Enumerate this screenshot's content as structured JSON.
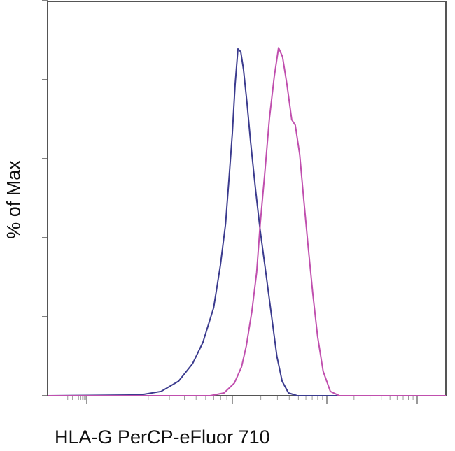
{
  "chart_data": {
    "type": "line",
    "title": "",
    "xlabel": "HLA-G PerCP-eFluor 710",
    "ylabel": "% of Max",
    "xlim": [
      0,
      100
    ],
    "ylim": [
      0,
      100
    ],
    "x_scale": "log",
    "grid": false,
    "legend": "none",
    "series": [
      {
        "color": "#3b3b8e",
        "x": [
          0,
          23.2,
          28.5,
          32.9,
          36.4,
          39.0,
          41.7,
          43.4,
          44.7,
          45.5,
          46.4,
          47.1,
          47.8,
          48.5,
          49.2,
          50.1,
          51.0,
          52.2,
          53.4,
          54.8,
          56.2,
          57.6,
          58.9,
          60.5,
          62.7,
          100
        ],
        "y": [
          0,
          0.2,
          1.1,
          3.7,
          8.1,
          13.5,
          22.3,
          33,
          43.5,
          54.2,
          66.5,
          78.9,
          87.8,
          87.1,
          82.6,
          73.8,
          64,
          52.4,
          41.8,
          31.2,
          20.5,
          9.9,
          3.7,
          0.7,
          0,
          0
        ]
      },
      {
        "color": "#c04fae",
        "x": [
          0,
          40.8,
          44.3,
          46.9,
          48.7,
          49.9,
          51.3,
          52.5,
          53.4,
          54.5,
          55.7,
          56.9,
          58.0,
          59.0,
          60.1,
          61.3,
          62.2,
          63.3,
          64.1,
          65.4,
          66.6,
          67.8,
          69.2,
          71.0,
          73.3,
          100
        ],
        "y": [
          0,
          0,
          0.7,
          3.2,
          7.3,
          12.6,
          21.4,
          31.2,
          43.5,
          55.9,
          70.1,
          80.7,
          88.1,
          85.8,
          78.8,
          69.9,
          68.5,
          61.1,
          52.2,
          38.1,
          25.7,
          15.0,
          6.2,
          1.1,
          0,
          0
        ]
      }
    ],
    "y_ticks": [
      0,
      20,
      40,
      60,
      80,
      100
    ]
  }
}
